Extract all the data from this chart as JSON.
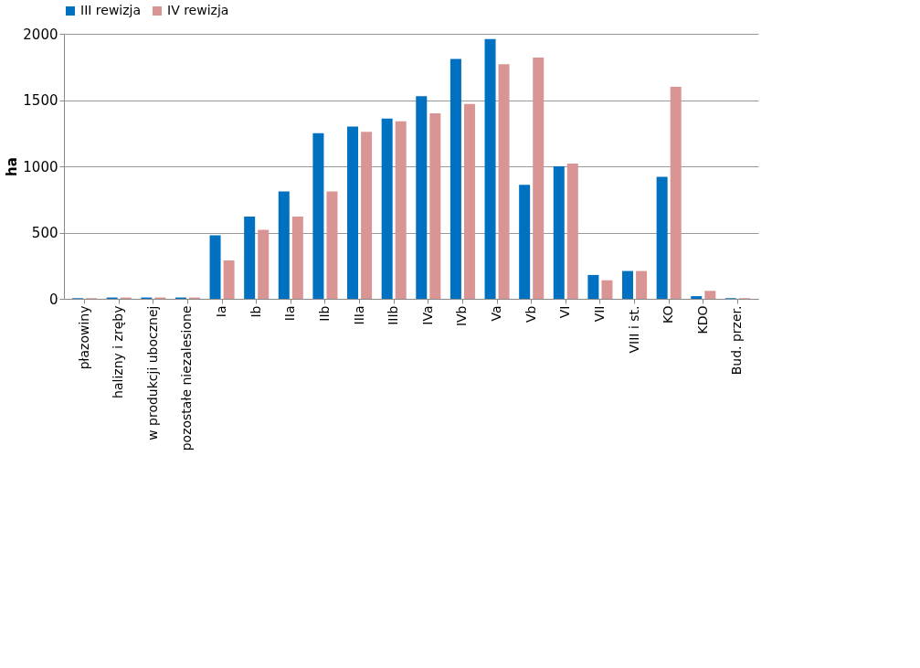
{
  "chart_data": {
    "type": "bar",
    "ylabel": "ha",
    "categories": [
      "płazowiny",
      "halizny i zręby",
      "w produkcji ubocznej",
      "pozostałe niezalesione",
      "Ia",
      "Ib",
      "IIa",
      "IIb",
      "IIIa",
      "IIIb",
      "IVa",
      "IVb",
      "Va",
      "Vb",
      "VI",
      "VII",
      "VIII i st.",
      "KO",
      "KDO",
      "Bud. przer."
    ],
    "series": [
      {
        "name": "III rewizja",
        "color": "#0070c0",
        "values": [
          5,
          10,
          10,
          10,
          480,
          620,
          810,
          1250,
          1300,
          1360,
          1530,
          1810,
          1960,
          860,
          1000,
          180,
          210,
          920,
          20,
          5
        ]
      },
      {
        "name": "IV rewizja",
        "color": "#d99594",
        "values": [
          5,
          10,
          10,
          10,
          290,
          520,
          620,
          810,
          1260,
          1340,
          1400,
          1470,
          1770,
          1820,
          1020,
          140,
          210,
          1600,
          60,
          5
        ]
      }
    ],
    "ylim": [
      0,
      2000
    ],
    "yticks": [
      0,
      500,
      1000,
      1500,
      2000
    ],
    "grid": "y",
    "legend": "top"
  }
}
